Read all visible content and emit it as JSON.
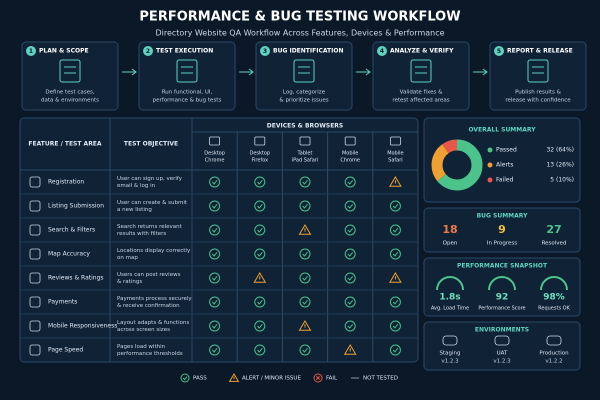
{
  "header": {
    "title": "PERFORMANCE & BUG TESTING WORKFLOW",
    "subtitle": "Directory Website QA Workflow Across Features, Devices & Performance"
  },
  "steps": [
    {
      "number": "1",
      "title": "PLAN & SCOPE",
      "description": [
        "Define test cases,",
        "data & environments"
      ]
    },
    {
      "number": "2",
      "title": "TEST EXECUTION",
      "description": [
        "Run functional, UI,",
        "performance & bug tests"
      ]
    },
    {
      "number": "3",
      "title": "BUG IDENTIFICATION",
      "description": [
        "Log, categorize",
        "& prioritize issues"
      ]
    },
    {
      "number": "4",
      "title": "ANALYZE & VERIFY",
      "description": [
        "Validate fixes &",
        "retest affected areas"
      ]
    },
    {
      "number": "5",
      "title": "REPORT & RELEASE",
      "description": [
        "Publish results &",
        "release with confidence"
      ]
    }
  ],
  "matrix": {
    "feature_header": "FEATURE / TEST AREA",
    "objective_header": "TEST OBJECTIVE",
    "devices_header": "DEVICES & BROWSERS",
    "devices": [
      [
        "Desktop",
        "Chrome"
      ],
      [
        "Desktop",
        "Firefox"
      ],
      [
        "Tablet",
        "iPad Safari"
      ],
      [
        "Mobile",
        "Chrome"
      ],
      [
        "Mobile",
        "Safari"
      ]
    ],
    "rows": [
      {
        "feature": "Registration",
        "objective": [
          "User can sign up, verify",
          "email & log in"
        ],
        "results": [
          "pass",
          "pass",
          "pass",
          "pass",
          "alert"
        ]
      },
      {
        "feature": "Listing Submission",
        "objective": [
          "User can create & submit",
          "a new listing"
        ],
        "results": [
          "pass",
          "pass",
          "pass",
          "pass",
          "pass"
        ]
      },
      {
        "feature": "Search & Filters",
        "objective": [
          "Search returns relevant",
          "results with filters"
        ],
        "results": [
          "pass",
          "pass",
          "alert",
          "pass",
          "pass"
        ]
      },
      {
        "feature": "Map Accuracy",
        "objective": [
          "Locations display correctly",
          "on map"
        ],
        "results": [
          "pass",
          "pass",
          "pass",
          "pass",
          "pass"
        ]
      },
      {
        "feature": "Reviews & Ratings",
        "objective": [
          "Users can post reviews",
          "& ratings"
        ],
        "results": [
          "pass",
          "alert",
          "pass",
          "pass",
          "alert"
        ]
      },
      {
        "feature": "Payments",
        "objective": [
          "Payments process securely",
          "& receive confirmation"
        ],
        "results": [
          "pass",
          "pass",
          "pass",
          "pass",
          "pass"
        ]
      },
      {
        "feature": "Mobile Responsiveness",
        "objective": [
          "Layout adapts & functions",
          "across screen sizes"
        ],
        "results": [
          "pass",
          "pass",
          "alert",
          "pass",
          "pass"
        ]
      },
      {
        "feature": "Page Speed",
        "objective": [
          "Pages load within",
          "performance thresholds"
        ],
        "results": [
          "pass",
          "pass",
          "pass",
          "alert",
          "pass"
        ]
      }
    ]
  },
  "overall_summary": {
    "title": "OVERALL SUMMARY",
    "labels": [
      "Passed",
      "Alerts",
      "Failed"
    ],
    "values": [
      32,
      13,
      5
    ],
    "value_labels": [
      "32 (64%)",
      "13 (26%)",
      "5 (10%)"
    ],
    "colors": [
      "#4cc38a",
      "#f0a030",
      "#e8574a"
    ]
  },
  "bug_summary": {
    "title": "BUG SUMMARY",
    "items": [
      {
        "value": 18,
        "label": "Open",
        "color": "#f07a4a"
      },
      {
        "value": 9,
        "label": "In Progress",
        "color": "#f0c040"
      },
      {
        "value": 27,
        "label": "Resolved",
        "color": "#4cc38a"
      }
    ]
  },
  "performance": {
    "title": "PERFORMANCE SNAPSHOT",
    "items": [
      {
        "value": "1.8s",
        "label": "Avg. Load Time"
      },
      {
        "value": "92",
        "label": "Performance Score"
      },
      {
        "value": "98%",
        "label": "Requests OK"
      }
    ]
  },
  "environments": {
    "title": "ENVIRONMENTS",
    "items": [
      {
        "name": "Staging",
        "version": "v1.2.3"
      },
      {
        "name": "UAT",
        "version": "v1.2.3"
      },
      {
        "name": "Production",
        "version": "v1.2.2"
      }
    ]
  },
  "legend": [
    {
      "status": "pass",
      "label": "PASS"
    },
    {
      "status": "alert",
      "label": "ALERT / MINOR ISSUE"
    },
    {
      "status": "fail",
      "label": "FAIL"
    },
    {
      "status": "not_tested",
      "label": "NOT TESTED"
    }
  ]
}
